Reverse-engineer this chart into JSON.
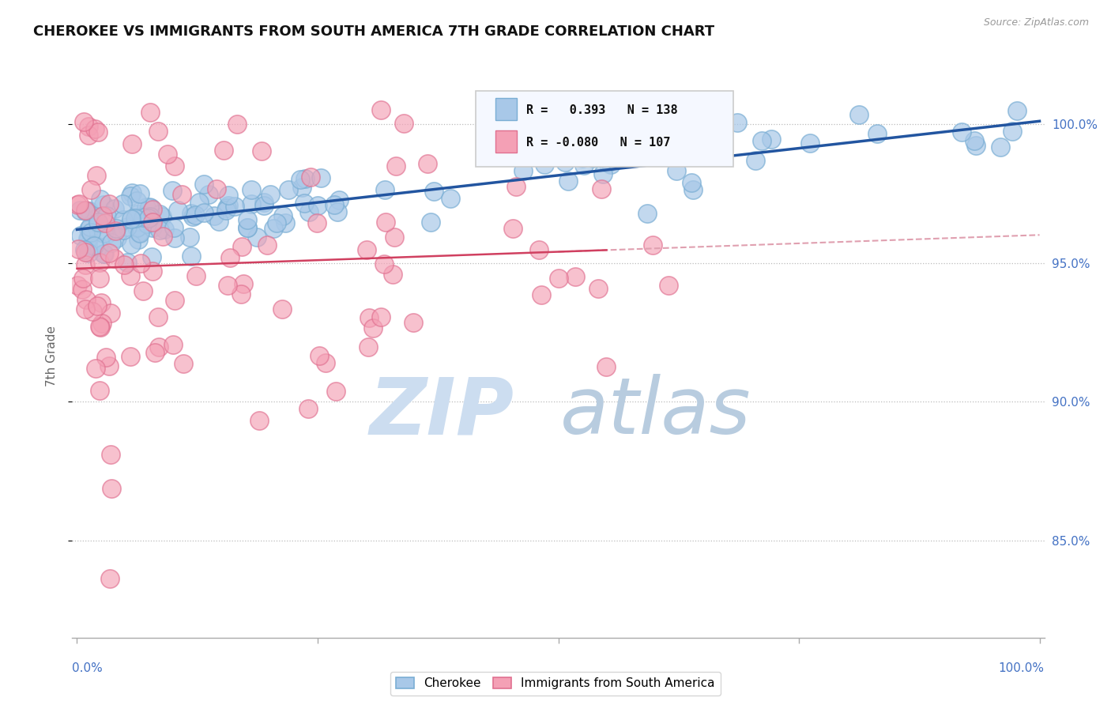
{
  "title": "CHEROKEE VS IMMIGRANTS FROM SOUTH AMERICA 7TH GRADE CORRELATION CHART",
  "source": "Source: ZipAtlas.com",
  "ylabel": "7th Grade",
  "r_cherokee": 0.393,
  "n_cherokee": 138,
  "r_immigrants": -0.08,
  "n_immigrants": 107,
  "ymin": 0.815,
  "ymax": 1.018,
  "xmin": -0.005,
  "xmax": 1.005,
  "blue_color": "#a8c8e8",
  "blue_edge_color": "#7aaed4",
  "pink_color": "#f4a0b5",
  "pink_edge_color": "#e07090",
  "blue_line_color": "#2255a0",
  "pink_line_color": "#d04060",
  "pink_dash_color": "#e0a0b0",
  "axis_label_color": "#4472c4",
  "grid_color": "#bbbbbb",
  "background_color": "#ffffff",
  "legend_border_color": "#cccccc",
  "legend_bg_color": "#f0f4ff",
  "ytick_vals": [
    0.85,
    0.9,
    0.95,
    1.0
  ],
  "xtick_vals": [
    0.0,
    0.25,
    0.5,
    0.75,
    1.0
  ]
}
